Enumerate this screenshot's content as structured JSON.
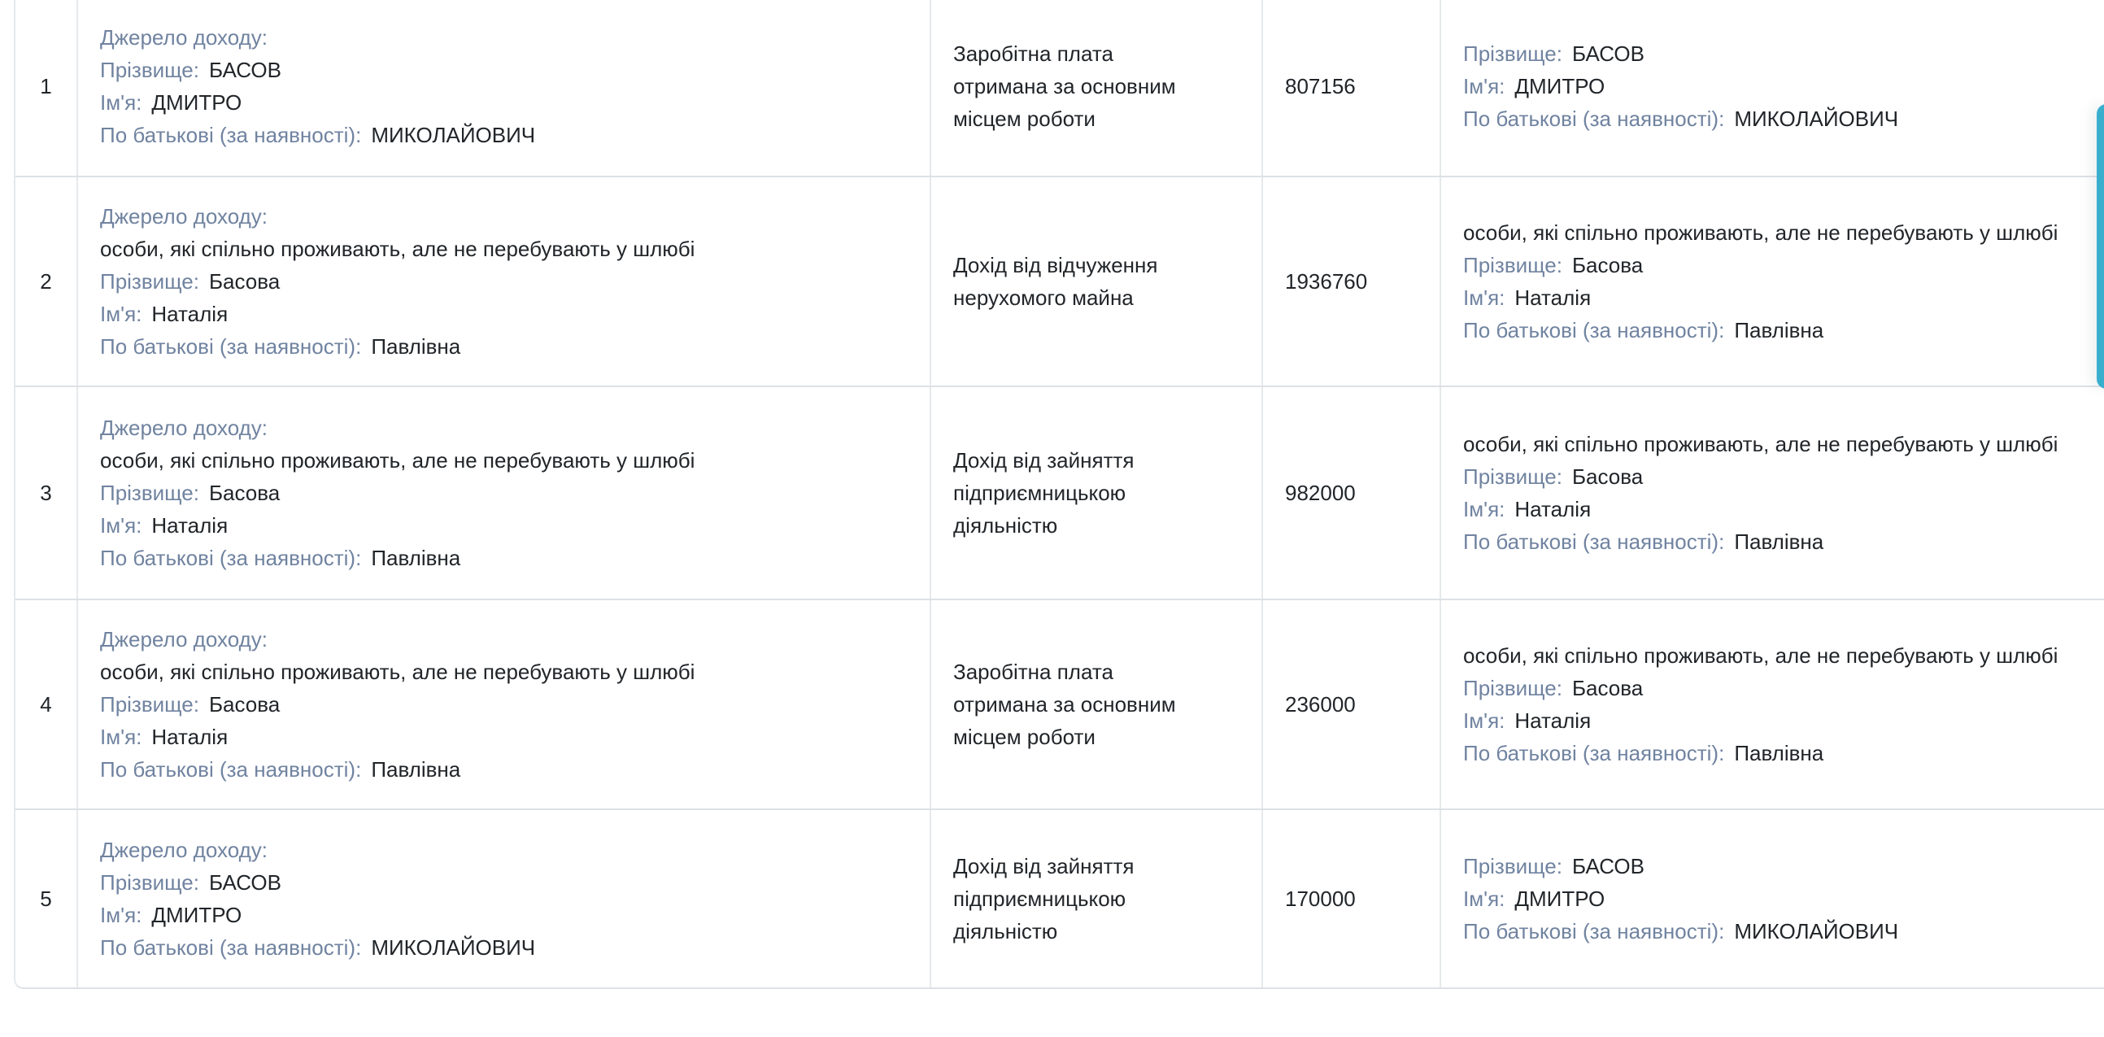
{
  "labels": {
    "source": "Джерело доходу:",
    "lastname": "Прізвище:",
    "firstname": "Ім'я:",
    "patronymic": "По батькові (за наявності):"
  },
  "cohabitant_note": "особи, які спільно проживають, але не перебувають у шлюбі",
  "rows": [
    {
      "num": "1",
      "source": {
        "lastname": "БАСОВ",
        "firstname": "ДМИТРО",
        "patronymic": "МИКОЛАЙОВИЧ"
      },
      "income_type": "Заробітна плата\nотримана за основним\nмісцем роботи",
      "amount": "807156",
      "recipient": {
        "lastname": "БАСОВ",
        "firstname": "ДМИТРО",
        "patronymic": "МИКОЛАЙОВИЧ"
      }
    },
    {
      "num": "2",
      "source": {
        "note": "особи, які спільно проживають, але не перебувають у шлюбі",
        "lastname": "Басова",
        "firstname": "Наталія",
        "patronymic": "Павлівна"
      },
      "income_type": "Дохід від відчуження\nнерухомого майна",
      "amount": "1936760",
      "recipient": {
        "note": "особи, які спільно проживають, але не перебувають у шлюбі",
        "lastname": "Басова",
        "firstname": "Наталія",
        "patronymic": "Павлівна"
      }
    },
    {
      "num": "3",
      "source": {
        "note": "особи, які спільно проживають, але не перебувають у шлюбі",
        "lastname": "Басова",
        "firstname": "Наталія",
        "patronymic": "Павлівна"
      },
      "income_type": "Дохід від зайняття\nпідприємницькою\nдіяльністю",
      "amount": "982000",
      "recipient": {
        "note": "особи, які спільно проживають, але не перебувають у шлюбі",
        "lastname": "Басова",
        "firstname": "Наталія",
        "patronymic": "Павлівна"
      }
    },
    {
      "num": "4",
      "source": {
        "note": "особи, які спільно проживають, але не перебувають у шлюбі",
        "lastname": "Басова",
        "firstname": "Наталія",
        "patronymic": "Павлівна"
      },
      "income_type": "Заробітна плата\nотримана за основним\nмісцем роботи",
      "amount": "236000",
      "recipient": {
        "note": "особи, які спільно проживають, але не перебувають у шлюбі",
        "lastname": "Басова",
        "firstname": "Наталія",
        "patronymic": "Павлівна"
      }
    },
    {
      "num": "5",
      "source": {
        "lastname": "БАСОВ",
        "firstname": "ДМИТРО",
        "patronymic": "МИКОЛАЙОВИЧ"
      },
      "income_type": "Дохід від зайняття\nпідприємницькою\nдіяльністю",
      "amount": "170000",
      "recipient": {
        "lastname": "БАСОВ",
        "firstname": "ДМИТРО",
        "patronymic": "МИКОЛАЙОВИЧ"
      }
    }
  ],
  "colors": {
    "label": "#7083a0",
    "text": "#212529",
    "border_horizontal": "#dde1e5",
    "border_vertical": "#e6e9ec",
    "scrollbar": "#39afcd",
    "background": "#ffffff"
  }
}
